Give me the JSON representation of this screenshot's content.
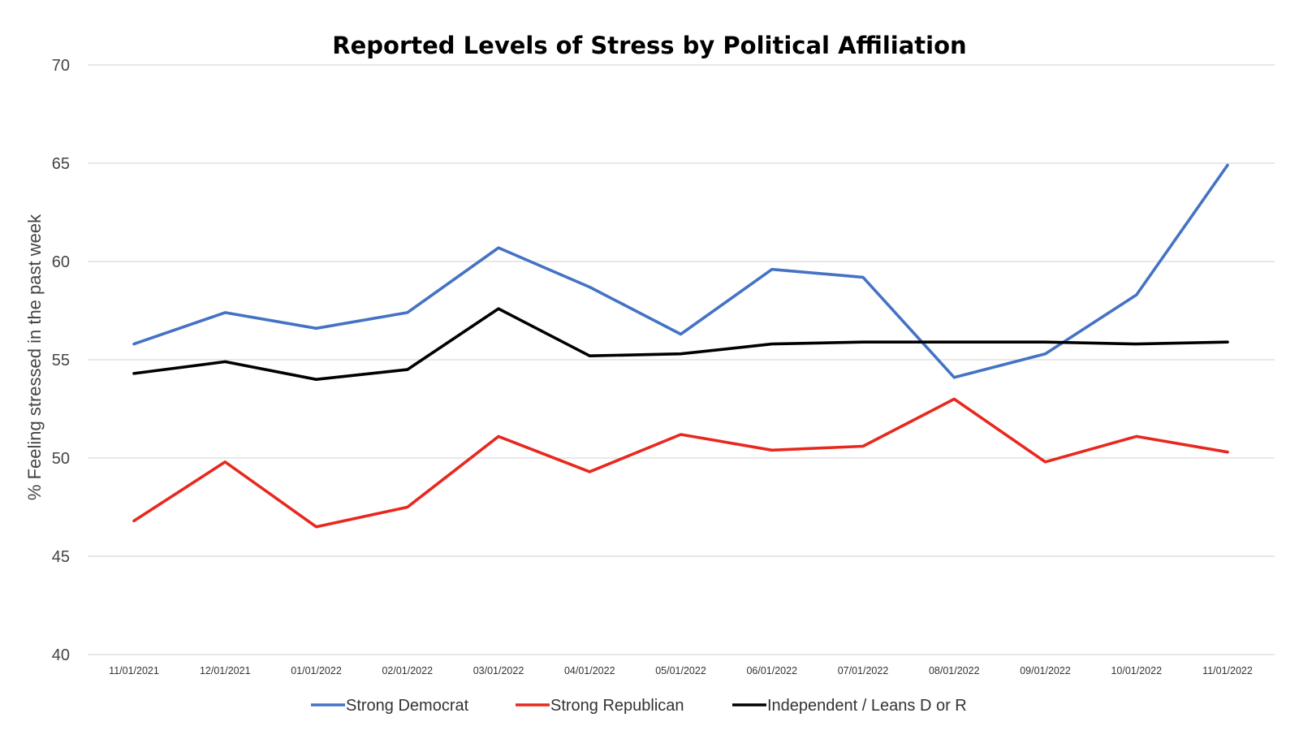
{
  "chart_data": {
    "type": "line",
    "title": "Reported Levels of Stress by Political Affiliation",
    "xlabel": "",
    "ylabel": "% Feeling stressed in the past week",
    "ylim": [
      40,
      70
    ],
    "yticks": [
      40,
      45,
      50,
      55,
      60,
      65,
      70
    ],
    "grid": true,
    "legend_position": "bottom",
    "categories": [
      "11/01/2021",
      "12/01/2021",
      "01/01/2022",
      "02/01/2022",
      "03/01/2022",
      "04/01/2022",
      "05/01/2022",
      "06/01/2022",
      "07/01/2022",
      "08/01/2022",
      "09/01/2022",
      "10/01/2022",
      "11/01/2022"
    ],
    "series": [
      {
        "name": "Strong Democrat",
        "color": "#4472c4",
        "values": [
          55.8,
          57.4,
          56.6,
          57.4,
          60.7,
          58.7,
          56.3,
          59.6,
          59.2,
          54.1,
          55.3,
          58.3,
          64.9
        ]
      },
      {
        "name": "Strong Republican",
        "color": "#e8281e",
        "values": [
          46.8,
          49.8,
          46.5,
          47.5,
          51.1,
          49.3,
          51.2,
          50.4,
          50.6,
          53.0,
          49.8,
          51.1,
          50.3
        ]
      },
      {
        "name": "Independent / Leans D or R",
        "color": "#000000",
        "values": [
          54.3,
          54.9,
          54.0,
          54.5,
          57.6,
          55.2,
          55.3,
          55.8,
          55.9,
          55.9,
          55.9,
          55.8,
          55.9
        ]
      }
    ]
  }
}
